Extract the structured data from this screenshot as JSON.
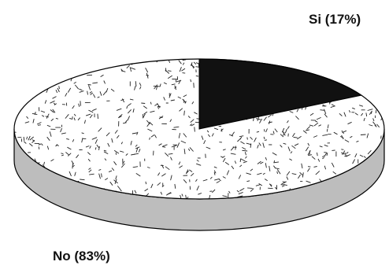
{
  "chart_data": {
    "type": "pie",
    "style": "3d",
    "slices": [
      {
        "label": "Si (17%)",
        "value": 17,
        "color": "#111111",
        "fill": "solid"
      },
      {
        "label": "No (83%)",
        "value": 83,
        "color": "#ffffff",
        "fill": "dashed-texture"
      }
    ],
    "side_color": "#bdbdbd",
    "outline_color": "#000000",
    "legend": "none"
  }
}
